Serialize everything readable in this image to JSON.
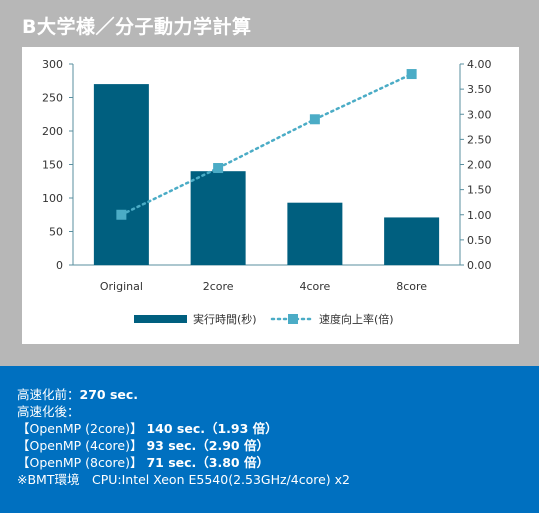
{
  "title": "B大学様／分子動力学計算",
  "colors": {
    "bar": "#005f7f",
    "line": "#4bacc6",
    "axis": "#5a8f9f",
    "frame": "#b7b7b7",
    "info_bg": "#0070c0"
  },
  "chart_data": {
    "type": "bar",
    "categories": [
      "Original",
      "2core",
      "4core",
      "8core"
    ],
    "series": [
      {
        "name": "実行時間(秒)",
        "type": "bar",
        "axis": "left",
        "values": [
          270,
          140,
          93,
          71
        ]
      },
      {
        "name": "速度向上率(倍)",
        "type": "line",
        "axis": "right",
        "style": "dotted",
        "marker": "square",
        "values": [
          1.0,
          1.93,
          2.9,
          3.8
        ]
      }
    ],
    "ylim": [
      0,
      300
    ],
    "y_ticks": [
      "0",
      "50",
      "100",
      "150",
      "200",
      "250",
      "300"
    ],
    "y_tick_values": [
      0,
      50,
      100,
      150,
      200,
      250,
      300
    ],
    "y2lim": [
      0,
      4
    ],
    "y2_ticks": [
      "0.00",
      "0.50",
      "1.00",
      "1.50",
      "2.00",
      "2.50",
      "3.00",
      "3.50",
      "4.00"
    ],
    "y2_tick_values": [
      0,
      0.5,
      1,
      1.5,
      2,
      2.5,
      3,
      3.5,
      4
    ],
    "grid": false,
    "legend_position": "bottom",
    "title": "",
    "xlabel": "",
    "ylabel": ""
  },
  "info": {
    "before_label": "高速化前：",
    "before_value": "270 sec.",
    "after_label": "高速化後：",
    "results": [
      {
        "label": "【OpenMP (2core)】",
        "value": "140 sec.（1.93 倍）"
      },
      {
        "label": "【OpenMP (4core)】",
        "value": "93 sec.（2.90 倍）"
      },
      {
        "label": "【OpenMP (8core)】",
        "value": "71 sec.（3.80 倍）"
      }
    ],
    "env": "※BMT環境　CPU:Intel Xeon E5540(2.53GHz/4core) x2"
  }
}
